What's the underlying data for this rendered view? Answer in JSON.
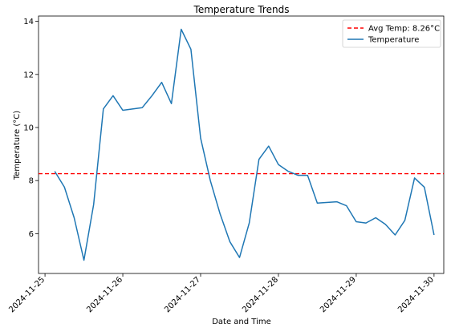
{
  "chart_data": {
    "type": "line",
    "title": "Temperature Trends",
    "xlabel": "Date and Time",
    "ylabel": "Temperature (°C)",
    "x_tick_labels": [
      "2024-11-25",
      "2024-11-26",
      "2024-11-27",
      "2024-11-28",
      "2024-11-29",
      "2024-11-30"
    ],
    "y_ticks": [
      6,
      8,
      10,
      12,
      14
    ],
    "ylim": [
      4.5,
      14.2
    ],
    "xlim": [
      "2024-11-24T22:00",
      "2024-11-30T03:00"
    ],
    "grid": false,
    "legend_position": "top-right",
    "series": [
      {
        "name": "Temperature",
        "color": "#1f77b4",
        "x": [
          "2024-11-25T03:00",
          "2024-11-25T06:00",
          "2024-11-25T09:00",
          "2024-11-25T12:00",
          "2024-11-25T15:00",
          "2024-11-25T18:00",
          "2024-11-25T21:00",
          "2024-11-26T00:00",
          "2024-11-26T06:00",
          "2024-11-26T09:00",
          "2024-11-26T12:00",
          "2024-11-26T15:00",
          "2024-11-26T18:00",
          "2024-11-26T21:00",
          "2024-11-27T00:00",
          "2024-11-27T03:00",
          "2024-11-27T06:00",
          "2024-11-27T09:00",
          "2024-11-27T12:00",
          "2024-11-27T15:00",
          "2024-11-27T18:00",
          "2024-11-27T21:00",
          "2024-11-28T00:00",
          "2024-11-28T03:00",
          "2024-11-28T06:00",
          "2024-11-28T09:00",
          "2024-11-28T12:00",
          "2024-11-28T18:00",
          "2024-11-28T21:00",
          "2024-11-29T00:00",
          "2024-11-29T03:00",
          "2024-11-29T06:00",
          "2024-11-29T09:00",
          "2024-11-29T12:00",
          "2024-11-29T15:00",
          "2024-11-29T18:00",
          "2024-11-29T21:00",
          "2024-11-30T00:00"
        ],
        "values": [
          8.35,
          7.75,
          6.6,
          5.0,
          7.1,
          10.7,
          11.2,
          10.65,
          10.75,
          11.2,
          11.7,
          10.9,
          13.7,
          12.95,
          9.6,
          8.0,
          6.75,
          5.7,
          5.1,
          6.4,
          8.8,
          9.3,
          8.6,
          8.35,
          8.2,
          8.2,
          7.15,
          7.2,
          7.05,
          6.45,
          6.4,
          6.6,
          6.35,
          5.95,
          6.5,
          8.1,
          7.75,
          5.95
        ]
      }
    ],
    "reference_lines": [
      {
        "label": "Avg Temp: 8.26°C",
        "value": 8.26,
        "color": "#ff0000",
        "style": "dashed"
      }
    ]
  }
}
